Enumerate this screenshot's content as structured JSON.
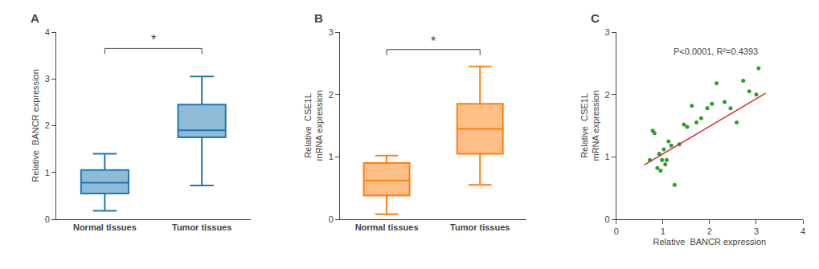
{
  "chart_data": [
    {
      "type": "box",
      "title": "A",
      "ylabel": "Relative  BANCR expression",
      "categories": [
        "Normal tissues",
        "Tumor tissues"
      ],
      "boxes": [
        {
          "min": 0.18,
          "q1": 0.55,
          "median": 0.78,
          "q3": 1.05,
          "max": 1.4
        },
        {
          "min": 0.72,
          "q1": 1.75,
          "median": 1.9,
          "q3": 2.45,
          "max": 3.05
        }
      ],
      "ylim": [
        0,
        4
      ],
      "yticks": [
        0,
        1,
        2,
        3,
        4
      ],
      "significance": {
        "y": 3.65,
        "label": "*"
      },
      "grid": false
    },
    {
      "type": "box",
      "title": "B",
      "ylabel": "Relative  CSE1L\nmRNA expression",
      "categories": [
        "Normal tissues",
        "Tumor tissues"
      ],
      "boxes": [
        {
          "min": 0.08,
          "q1": 0.38,
          "median": 0.62,
          "q3": 0.9,
          "max": 1.02
        },
        {
          "min": 0.55,
          "q1": 1.05,
          "median": 1.45,
          "q3": 1.85,
          "max": 2.45
        }
      ],
      "ylim": [
        0,
        3
      ],
      "yticks": [
        0,
        1,
        2,
        3
      ],
      "significance": {
        "y": 2.72,
        "label": "*"
      },
      "grid": false
    },
    {
      "type": "scatter",
      "title": "C",
      "xlabel": "Relative  BANCR expression",
      "ylabel": "Relative  CSE1L\nmRNA expression",
      "annotation": "P<0.0001, R²=0.4393",
      "x": [
        0.72,
        0.78,
        0.82,
        0.88,
        0.92,
        0.95,
        0.98,
        1.02,
        1.05,
        1.08,
        1.12,
        1.18,
        1.25,
        1.35,
        1.45,
        1.52,
        1.62,
        1.72,
        1.82,
        1.95,
        2.05,
        2.15,
        2.32,
        2.45,
        2.58,
        2.72,
        2.85,
        3.0,
        3.05
      ],
      "y": [
        0.95,
        1.42,
        1.38,
        0.82,
        1.05,
        0.78,
        0.95,
        1.12,
        0.88,
        0.95,
        1.25,
        1.18,
        0.55,
        1.2,
        1.52,
        1.48,
        1.82,
        1.55,
        1.62,
        1.78,
        1.85,
        2.18,
        1.88,
        1.78,
        1.55,
        2.22,
        2.05,
        2.0,
        2.42
      ],
      "fit_line": {
        "x": [
          0.6,
          3.2
        ],
        "y": [
          0.87,
          2.02
        ]
      },
      "xlim": [
        0,
        4
      ],
      "ylim": [
        0,
        3
      ],
      "xticks": [
        0,
        1,
        2,
        3,
        4
      ],
      "yticks": [
        0,
        1,
        2,
        3
      ],
      "grid": false
    }
  ]
}
